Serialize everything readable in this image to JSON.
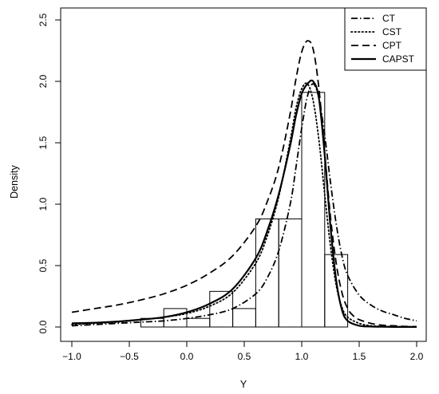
{
  "chart_data": {
    "type": "histogram-with-density-lines",
    "title": "",
    "xlabel": "Y",
    "ylabel": "Density",
    "xlim": [
      -1.0,
      2.0
    ],
    "ylim": [
      0,
      2.5
    ],
    "x_ticks": [
      "−1.0",
      "−0.5",
      "0.0",
      "0.5",
      "1.0",
      "1.5",
      "2.0"
    ],
    "x_tick_values": [
      -1.0,
      -0.5,
      0.0,
      0.5,
      1.0,
      1.5,
      2.0
    ],
    "y_ticks": [
      "0.0",
      "0.5",
      "1.0",
      "1.5",
      "2.0",
      "2.5"
    ],
    "y_tick_values": [
      0.0,
      0.5,
      1.0,
      1.5,
      2.0,
      2.5
    ],
    "grid": false,
    "legend_position": "top-right",
    "histogram": {
      "bin_width": 0.2,
      "bins": [
        {
          "x0": -0.4,
          "x1": -0.2,
          "density": 0.07
        },
        {
          "x0": -0.2,
          "x1": 0.0,
          "density": 0.15
        },
        {
          "x0": 0.0,
          "x1": 0.2,
          "density": 0.07
        },
        {
          "x0": 0.2,
          "x1": 0.4,
          "density": 0.29
        },
        {
          "x0": 0.4,
          "x1": 0.6,
          "density": 0.15
        },
        {
          "x0": 0.6,
          "x1": 0.8,
          "density": 0.88
        },
        {
          "x0": 0.8,
          "x1": 1.0,
          "density": 0.88
        },
        {
          "x0": 1.0,
          "x1": 1.2,
          "density": 1.91
        },
        {
          "x0": 1.2,
          "x1": 1.4,
          "density": 0.59
        }
      ]
    },
    "series": [
      {
        "name": "CT",
        "style": "dotdash",
        "x": [
          -1.0,
          -0.8,
          -0.6,
          -0.4,
          -0.2,
          0.0,
          0.2,
          0.4,
          0.6,
          0.7,
          0.8,
          0.9,
          0.95,
          1.0,
          1.05,
          1.1,
          1.15,
          1.2,
          1.25,
          1.3,
          1.35,
          1.4,
          1.5,
          1.6,
          1.7,
          1.8,
          1.9,
          2.0
        ],
        "values": [
          0.01,
          0.02,
          0.03,
          0.04,
          0.05,
          0.07,
          0.1,
          0.15,
          0.27,
          0.4,
          0.62,
          1.0,
          1.3,
          1.62,
          1.88,
          1.98,
          1.86,
          1.56,
          1.18,
          0.84,
          0.58,
          0.42,
          0.26,
          0.18,
          0.13,
          0.1,
          0.07,
          0.05
        ]
      },
      {
        "name": "CST",
        "style": "dotted",
        "x": [
          -1.0,
          -0.8,
          -0.6,
          -0.4,
          -0.2,
          0.0,
          0.2,
          0.4,
          0.6,
          0.7,
          0.8,
          0.9,
          0.95,
          1.0,
          1.05,
          1.1,
          1.15,
          1.2,
          1.25,
          1.3,
          1.35,
          1.4,
          1.5,
          1.6,
          1.7,
          1.8,
          1.9,
          2.0
        ],
        "values": [
          0.02,
          0.03,
          0.04,
          0.06,
          0.08,
          0.11,
          0.17,
          0.28,
          0.52,
          0.74,
          1.06,
          1.52,
          1.78,
          1.94,
          1.98,
          1.84,
          1.52,
          1.08,
          0.66,
          0.34,
          0.16,
          0.08,
          0.03,
          0.01,
          0.005,
          0.003,
          0.002,
          0.001
        ]
      },
      {
        "name": "CPT",
        "style": "dashed",
        "x": [
          -1.0,
          -0.8,
          -0.6,
          -0.4,
          -0.2,
          0.0,
          0.2,
          0.4,
          0.6,
          0.7,
          0.8,
          0.9,
          0.95,
          1.0,
          1.05,
          1.1,
          1.15,
          1.2,
          1.25,
          1.3,
          1.35,
          1.4,
          1.45,
          1.5,
          1.6,
          1.7,
          1.8,
          1.9,
          2.0
        ],
        "values": [
          0.12,
          0.15,
          0.18,
          0.22,
          0.27,
          0.34,
          0.44,
          0.58,
          0.82,
          1.02,
          1.3,
          1.74,
          2.02,
          2.24,
          2.33,
          2.26,
          1.94,
          1.42,
          0.9,
          0.52,
          0.28,
          0.15,
          0.09,
          0.06,
          0.03,
          0.015,
          0.01,
          0.005,
          0.003
        ]
      },
      {
        "name": "CAPST",
        "style": "solid",
        "x": [
          -1.0,
          -0.8,
          -0.6,
          -0.4,
          -0.2,
          0.0,
          0.2,
          0.4,
          0.6,
          0.7,
          0.8,
          0.9,
          0.95,
          1.0,
          1.05,
          1.1,
          1.15,
          1.2,
          1.25,
          1.3,
          1.35,
          1.4,
          1.5,
          1.6,
          1.7,
          1.8,
          1.9,
          2.0
        ],
        "values": [
          0.03,
          0.035,
          0.045,
          0.06,
          0.08,
          0.12,
          0.19,
          0.31,
          0.56,
          0.78,
          1.08,
          1.48,
          1.72,
          1.9,
          1.98,
          2.0,
          1.86,
          1.4,
          0.82,
          0.38,
          0.14,
          0.05,
          0.01,
          0.004,
          0.002,
          0.001,
          0.001,
          0.001
        ]
      }
    ],
    "legend": [
      {
        "label": "CT",
        "style": "dotdash"
      },
      {
        "label": "CST",
        "style": "dotted"
      },
      {
        "label": "CPT",
        "style": "dashed"
      },
      {
        "label": "CAPST",
        "style": "solid"
      }
    ]
  }
}
